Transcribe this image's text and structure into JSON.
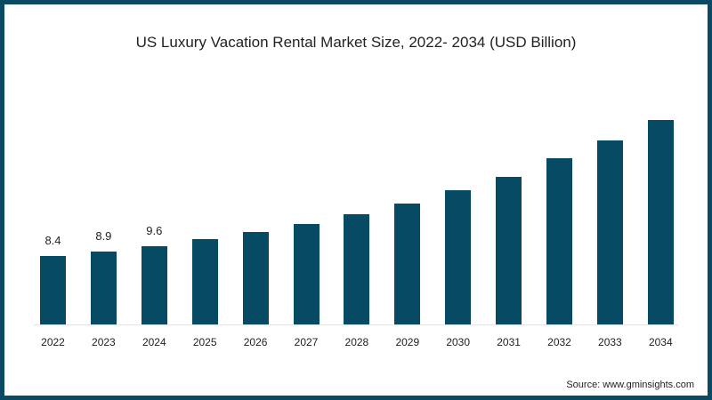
{
  "title": "US Luxury Vacation Rental Market Size, 2022- 2034 (USD Billion)",
  "source": "Source: www.gminsights.com",
  "colors": {
    "bar": "#064a63",
    "border": "#0b4a63"
  },
  "chart_data": {
    "type": "bar",
    "title": "US Luxury Vacation Rental Market Size, 2022- 2034 (USD Billion)",
    "xlabel": "",
    "ylabel": "USD Billion",
    "categories": [
      "2022",
      "2023",
      "2024",
      "2025",
      "2026",
      "2027",
      "2028",
      "2029",
      "2030",
      "2031",
      "2032",
      "2033",
      "2034"
    ],
    "values": [
      8.4,
      8.9,
      9.6,
      10.5,
      11.3,
      12.3,
      13.5,
      14.8,
      16.5,
      18.1,
      20.4,
      22.6,
      25.1
    ],
    "data_labels": {
      "2022": "8.4",
      "2023": "8.9",
      "2024": "9.6"
    },
    "grid": false,
    "legend": "none",
    "ylim": [
      0,
      26
    ]
  }
}
